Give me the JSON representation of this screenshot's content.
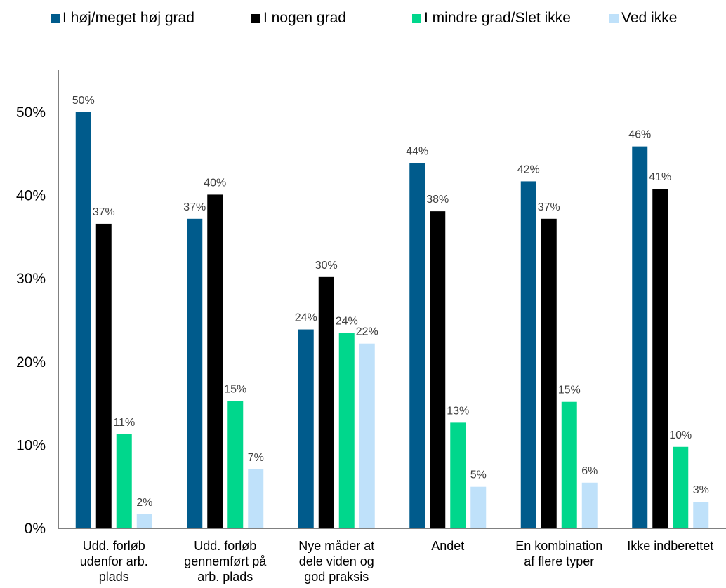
{
  "chart_data": {
    "type": "bar",
    "title": "",
    "xlabel": "",
    "ylabel": "",
    "ylim": [
      0,
      50
    ],
    "yticks": [
      0,
      10,
      20,
      30,
      40,
      50
    ],
    "ytick_labels": [
      "0%",
      "10%",
      "20%",
      "30%",
      "40%",
      "50%"
    ],
    "grid": false,
    "legend_position": "top",
    "categories": [
      [
        "Udd. forløb",
        "udenfor arb.",
        "plads"
      ],
      [
        "Udd. forløb",
        "gennemført på",
        "arb. plads"
      ],
      [
        "Nye måder at",
        "dele viden og",
        "god praksis"
      ],
      [
        "Andet"
      ],
      [
        "En kombination",
        "af flere typer"
      ],
      [
        "Ikke indberettet"
      ]
    ],
    "series": [
      {
        "name": "I høj/meget høj grad",
        "color": "#005b8c",
        "values": [
          50,
          37.2,
          23.9,
          43.9,
          41.7,
          45.9
        ],
        "labels": [
          "50%",
          "37%",
          "24%",
          "44%",
          "42%",
          "46%"
        ]
      },
      {
        "name": "I nogen grad",
        "color": "#000000",
        "values": [
          36.6,
          40.1,
          30.2,
          38.1,
          37.2,
          40.8
        ],
        "labels": [
          "37%",
          "40%",
          "30%",
          "38%",
          "37%",
          "41%"
        ]
      },
      {
        "name": "I mindre grad/Slet ikke",
        "color": "#00d78c",
        "values": [
          11.3,
          15.3,
          23.5,
          12.7,
          15.2,
          9.8
        ],
        "labels": [
          "11%",
          "15%",
          "24%",
          "13%",
          "15%",
          "10%"
        ]
      },
      {
        "name": "Ved ikke",
        "color": "#bfe1fa",
        "values": [
          1.7,
          7.1,
          22.2,
          5.0,
          5.5,
          3.2
        ],
        "labels": [
          "2%",
          "7%",
          "22%",
          "5%",
          "6%",
          "3%"
        ]
      }
    ]
  }
}
